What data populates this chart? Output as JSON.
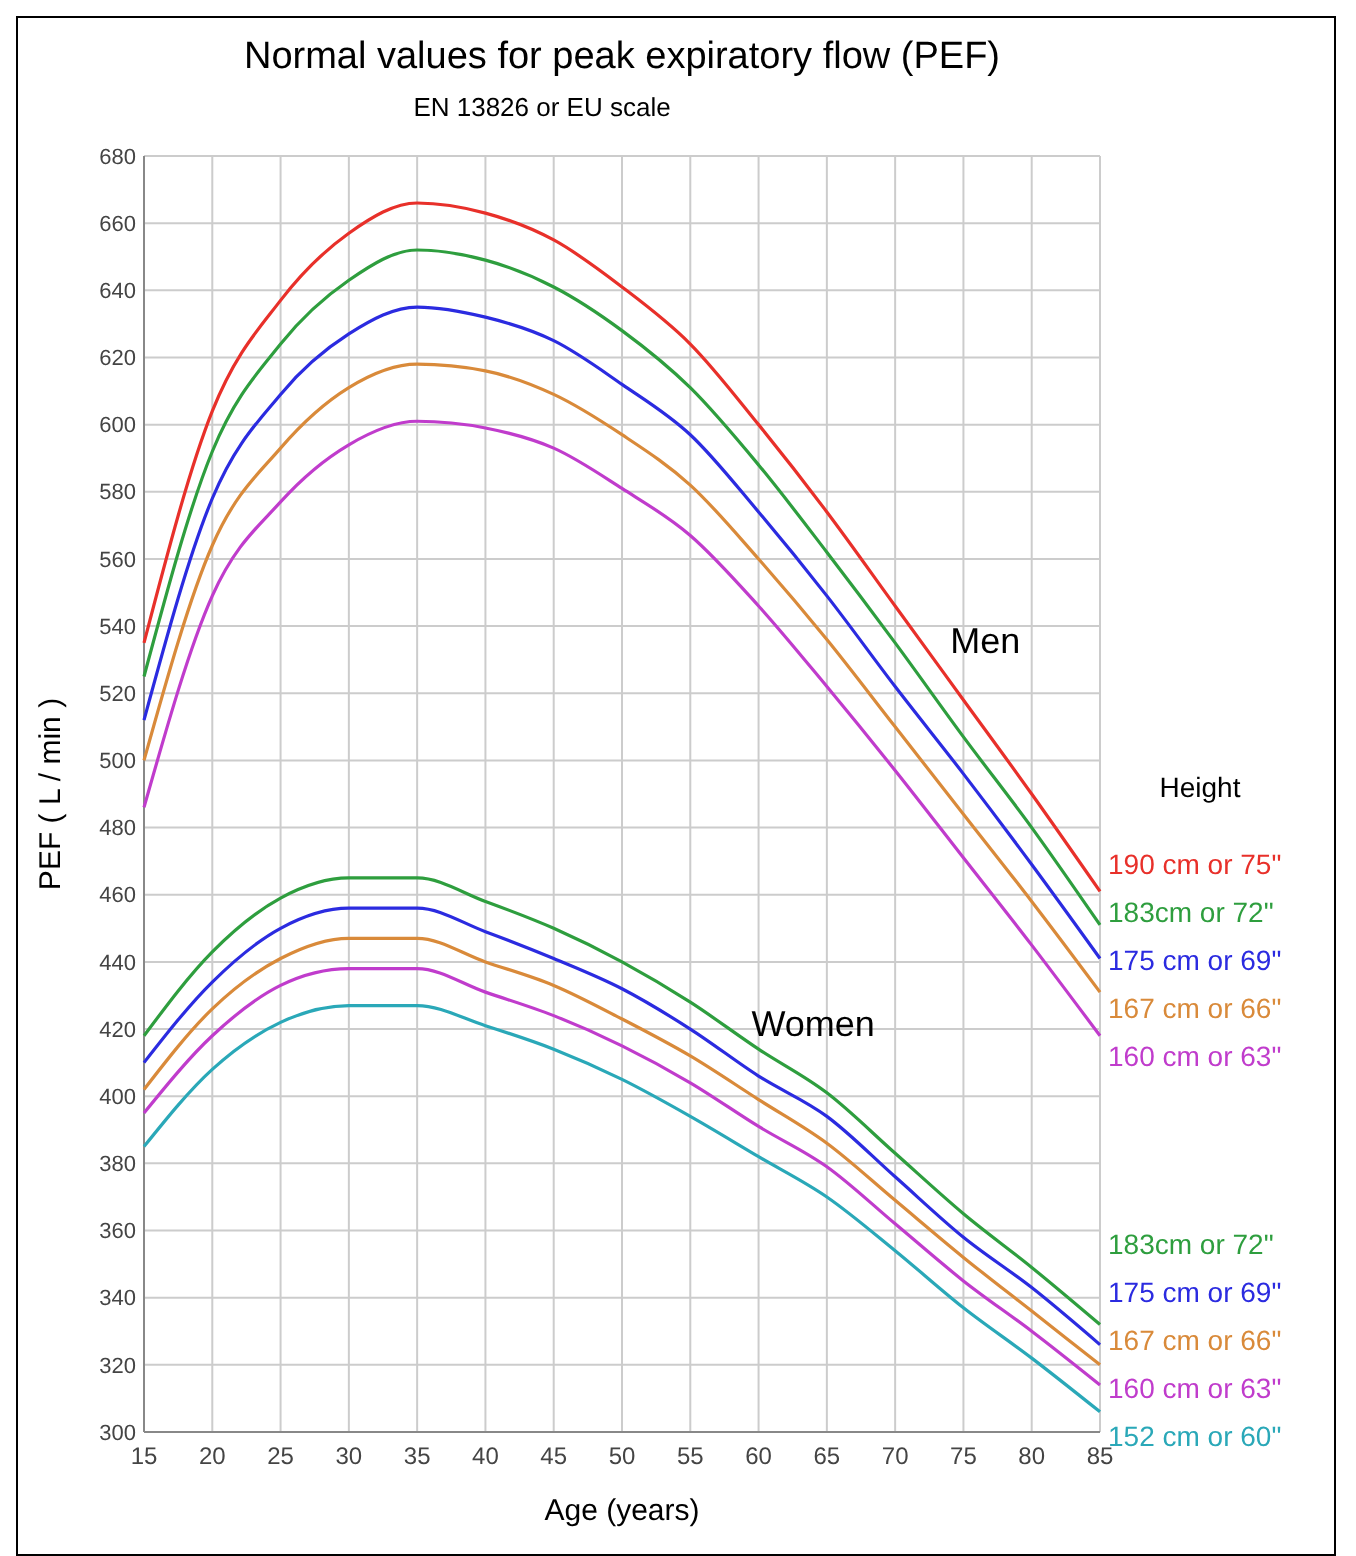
{
  "chart_data": {
    "type": "line",
    "title": "Normal values for peak expiratory flow (PEF)",
    "subtitle": "EN 13826 or EU scale",
    "xlabel": "Age (years)",
    "ylabel": "PEF ( L / min )",
    "legend_title": "Height",
    "legend": "right",
    "grid": true,
    "x": [
      15,
      20,
      25,
      30,
      35,
      40,
      45,
      50,
      55,
      60,
      65,
      70,
      75,
      80,
      85
    ],
    "xlim": [
      15,
      85
    ],
    "xticks": [
      15,
      20,
      25,
      30,
      35,
      40,
      45,
      50,
      55,
      60,
      65,
      70,
      75,
      80,
      85
    ],
    "ylim": [
      300,
      680
    ],
    "yticks": [
      300,
      320,
      340,
      360,
      380,
      400,
      420,
      440,
      460,
      480,
      500,
      520,
      540,
      560,
      580,
      600,
      620,
      640,
      660,
      680
    ],
    "annotations": [
      "Men",
      "Women"
    ],
    "series": [
      {
        "name": "190 cm or 75\"",
        "color": "#e8302a",
        "values": [
          535,
          604,
          637,
          657,
          666,
          663,
          655,
          641,
          624,
          600,
          574,
          546,
          518,
          490,
          461
        ]
      },
      {
        "name": "183cm or 72\"",
        "color": "#2e9e3e",
        "values": [
          525,
          592,
          624,
          643,
          652,
          649,
          641,
          628,
          611,
          588,
          562,
          535,
          507,
          480,
          451
        ]
      },
      {
        "name": "175 cm or 69\"",
        "color": "#2b2be0",
        "values": [
          512,
          578,
          609,
          627,
          635,
          632,
          625,
          612,
          597,
          574,
          549,
          522,
          496,
          469,
          441
        ]
      },
      {
        "name": "167 cm or 66\"",
        "color": "#d98a3a",
        "values": [
          500,
          564,
          593,
          611,
          618,
          616,
          609,
          597,
          582,
          560,
          536,
          510,
          484,
          458,
          431
        ]
      },
      {
        "name": "160 cm or 63\"",
        "color": "#c03ccc",
        "values": [
          486,
          549,
          577,
          594,
          601,
          599,
          593,
          581,
          567,
          546,
          522,
          497,
          471,
          445,
          418
        ]
      },
      {
        "name": "183cm or 72\"",
        "color": "#2e9e3e",
        "values": [
          418,
          443,
          459,
          465,
          465,
          458,
          450,
          440,
          428,
          414,
          401,
          383,
          365,
          349,
          332
        ]
      },
      {
        "name": "175 cm or 69\"",
        "color": "#2b2be0",
        "values": [
          410,
          434,
          450,
          456,
          456,
          449,
          441,
          432,
          420,
          406,
          394,
          376,
          358,
          343,
          326
        ]
      },
      {
        "name": "167 cm or 66\"",
        "color": "#d98a3a",
        "values": [
          402,
          426,
          441,
          447,
          447,
          440,
          433,
          423,
          412,
          399,
          386,
          369,
          352,
          336,
          320
        ]
      },
      {
        "name": "160 cm or 63\"",
        "color": "#c03ccc",
        "values": [
          395,
          418,
          433,
          438,
          438,
          431,
          424,
          415,
          404,
          391,
          379,
          362,
          345,
          330,
          314
        ]
      },
      {
        "name": "152 cm or 60\"",
        "color": "#2aa8b8",
        "values": [
          385,
          408,
          422,
          427,
          427,
          421,
          414,
          405,
          394,
          382,
          370,
          354,
          337,
          322,
          306
        ]
      }
    ]
  }
}
